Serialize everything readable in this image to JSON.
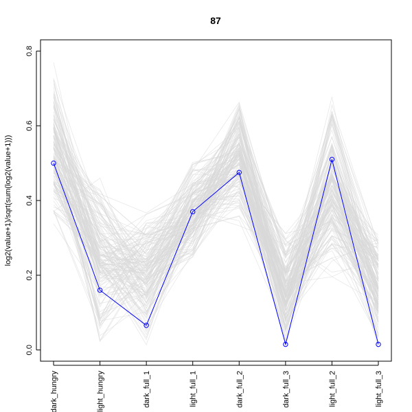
{
  "chart_data": {
    "type": "line",
    "title": "87",
    "ylabel": "log2(value+1)/sqrt(sum(log2(value+1)))",
    "xlabel": "",
    "categories": [
      "dark_hungry",
      "light_hungry",
      "dark_full_1",
      "light_full_1",
      "dark_full_2",
      "dark_full_3",
      "light_full_2",
      "light_full_3"
    ],
    "ylim": [
      -0.03,
      0.83
    ],
    "yticks": [
      0.0,
      0.2,
      0.4,
      0.6,
      0.8
    ],
    "ytick_labels": [
      "0.0",
      "0.2",
      "0.4",
      "0.6",
      "0.8"
    ],
    "grid": false,
    "highlight_series": {
      "values": [
        0.5,
        0.16,
        0.066,
        0.37,
        0.475,
        0.015,
        0.51,
        0.015
      ],
      "color": "#0000ff",
      "marker": "open-circle"
    },
    "background_series": {
      "color": "#d9d9d9",
      "count": 150,
      "typical_ranges": [
        [
          0.32,
          0.78
        ],
        [
          0.0,
          0.47
        ],
        [
          0.0,
          0.38
        ],
        [
          0.22,
          0.52
        ],
        [
          0.32,
          0.7
        ],
        [
          0.0,
          0.33
        ],
        [
          0.18,
          0.71
        ],
        [
          0.0,
          0.33
        ]
      ]
    }
  }
}
